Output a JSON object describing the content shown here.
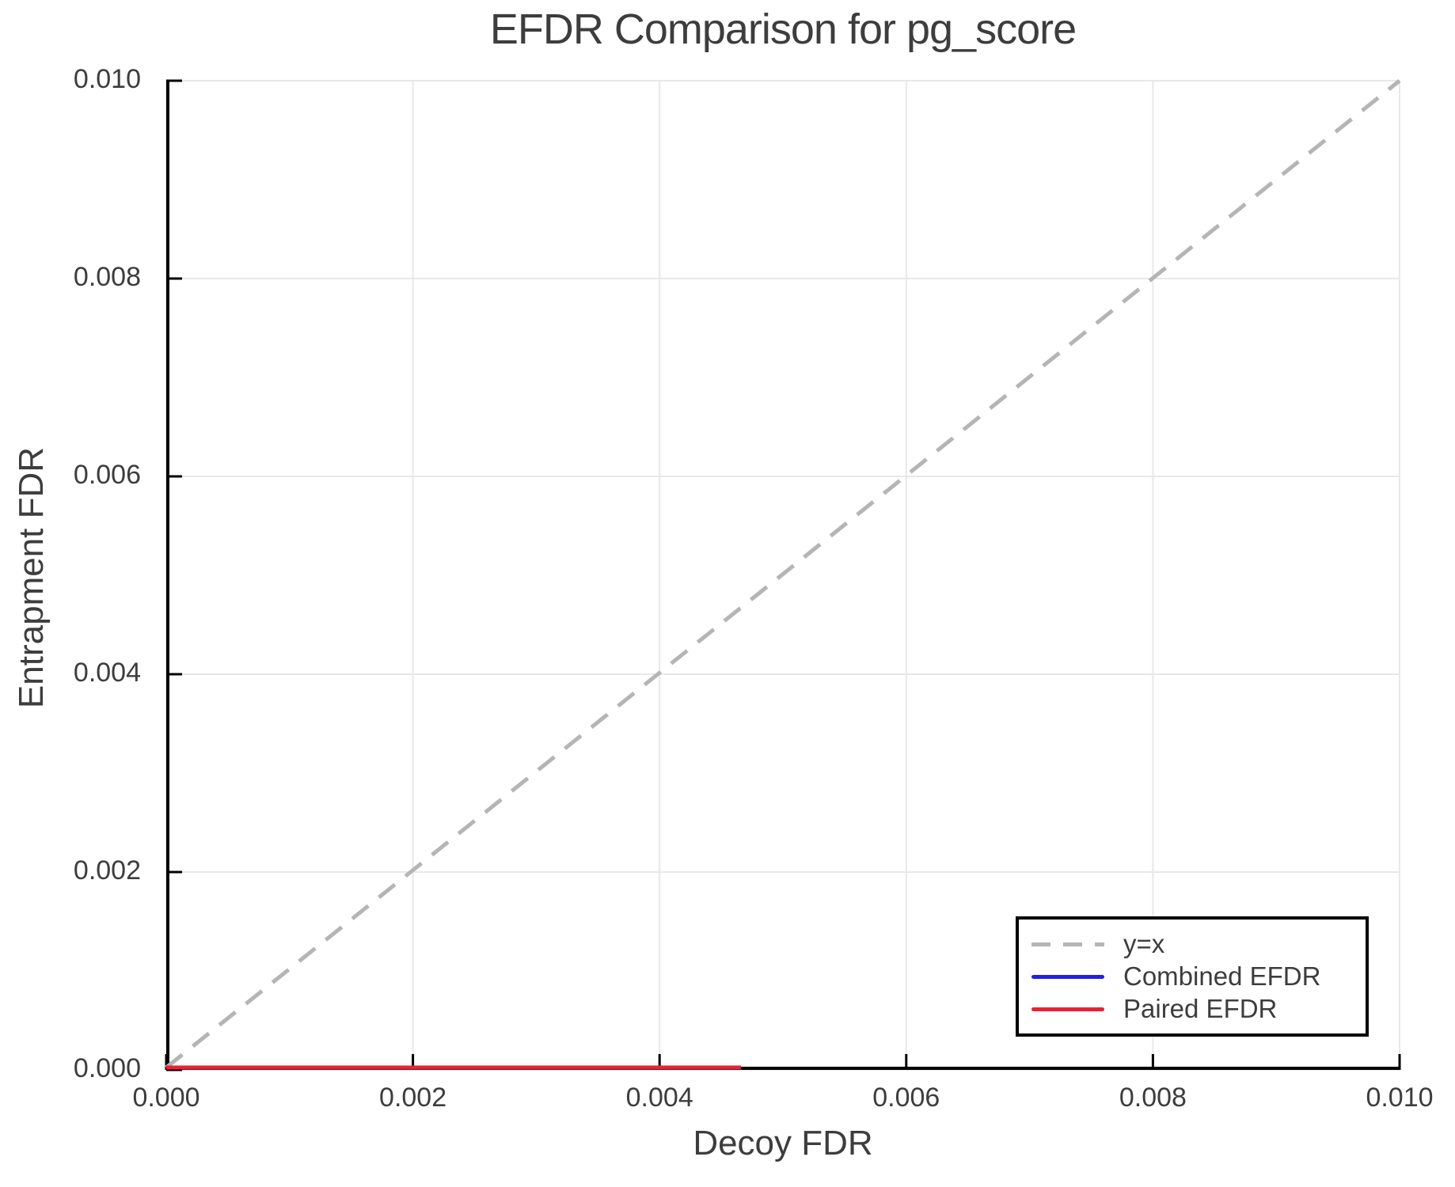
{
  "title": "EFDR Comparison for pg_score",
  "colors": {
    "text": "#3d3d3d",
    "axis": "#000000",
    "grid": "#e8e8e8",
    "background": "#ffffff",
    "identity_line": "#b5b5b5",
    "combined_efdr_line": "#2121dd",
    "paired_efdr_line": "#ec2033",
    "legend_border": "#000000"
  },
  "chart_data": {
    "type": "line",
    "title": "EFDR Comparison for pg_score",
    "xlabel": "Decoy FDR",
    "ylabel": "Entrapment FDR",
    "xlim": [
      0,
      0.01
    ],
    "ylim": [
      0,
      0.01
    ],
    "grid": true,
    "legend_position": "bottom-right",
    "xticks": {
      "values": [
        0,
        0.002,
        0.004,
        0.006,
        0.008,
        0.01
      ],
      "labels": [
        "0.000",
        "0.002",
        "0.004",
        "0.006",
        "0.008",
        "0.010"
      ]
    },
    "yticks": {
      "values": [
        0,
        0.002,
        0.004,
        0.006,
        0.008,
        0.01
      ],
      "labels": [
        "0.000",
        "0.002",
        "0.004",
        "0.006",
        "0.008",
        "0.010"
      ]
    },
    "series": [
      {
        "name": "y=x",
        "style": "dashed",
        "color": "#b5b5b5",
        "x": [
          0,
          0.01
        ],
        "y": [
          0,
          0.01
        ]
      },
      {
        "name": "Combined EFDR",
        "style": "solid",
        "color": "#2121dd",
        "x": [
          0,
          0.00466
        ],
        "y": [
          0,
          0
        ]
      },
      {
        "name": "Paired EFDR",
        "style": "solid",
        "color": "#ec2033",
        "x": [
          0,
          0.00466
        ],
        "y": [
          0,
          0
        ]
      }
    ]
  },
  "legend": {
    "items": [
      {
        "label": "y=x",
        "style": "dashed",
        "color": "#b5b5b5"
      },
      {
        "label": "Combined EFDR",
        "style": "solid",
        "color": "#2121dd"
      },
      {
        "label": "Paired EFDR",
        "style": "solid",
        "color": "#ec2033"
      }
    ]
  }
}
